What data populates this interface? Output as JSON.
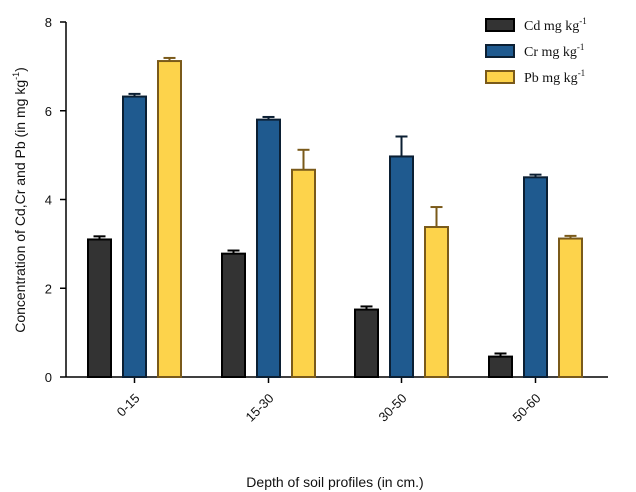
{
  "chart_data": {
    "type": "bar",
    "title": "",
    "xlabel": "Depth of soil profiles (in cm.)",
    "ylabel": "Concentration of Cd,Cr and Pb (in mg kg",
    "ylabel_sup": "-1",
    "ylabel_close": ")",
    "categories": [
      "0-15",
      "15-30",
      "30-50",
      "50-60"
    ],
    "ylim": [
      0,
      8
    ],
    "yticks": [
      0,
      2,
      4,
      6,
      8
    ],
    "grid": false,
    "legend_position": "top-right",
    "series": [
      {
        "name": "Cd mg kg",
        "name_sup": "-1",
        "color": "#333333",
        "edge": "#000000",
        "values": [
          3.1,
          2.78,
          1.52,
          0.46
        ],
        "errors": [
          0.07,
          0.07,
          0.07,
          0.07
        ]
      },
      {
        "name": "Cr mg kg",
        "name_sup": "-1",
        "color": "#1f5a8f",
        "edge": "#0b1f33",
        "values": [
          6.32,
          5.8,
          4.97,
          4.5
        ],
        "errors": [
          0.06,
          0.06,
          0.45,
          0.06
        ]
      },
      {
        "name": "Pb mg kg",
        "name_sup": "-1",
        "color": "#fdd34b",
        "edge": "#7a5a1a",
        "values": [
          7.12,
          4.67,
          3.38,
          3.12
        ],
        "errors": [
          0.07,
          0.45,
          0.45,
          0.06
        ]
      }
    ]
  }
}
